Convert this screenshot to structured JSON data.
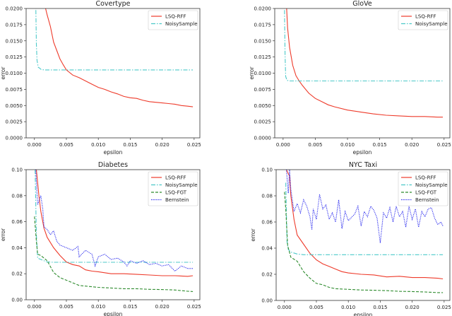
{
  "chart_data": [
    {
      "type": "line",
      "title": "Covertype",
      "xlabel": "epsilon",
      "ylabel": "error",
      "xlim": [
        -0.0013,
        0.0259
      ],
      "ylim": [
        0,
        0.02
      ],
      "xticks": [
        "0.000",
        "0.005",
        "0.010",
        "0.015",
        "0.020",
        "0.025"
      ],
      "yticks": [
        "0.0000",
        "0.0025",
        "0.0050",
        "0.0075",
        "0.0100",
        "0.0125",
        "0.0150",
        "0.0175",
        "0.0200"
      ],
      "legend": "top-right",
      "series": [
        {
          "name": "LSQ-RFF",
          "color": "#ee3b2b",
          "style": "solid",
          "x": [
            0.0015,
            0.002,
            0.0025,
            0.003,
            0.0035,
            0.004,
            0.0045,
            0.005,
            0.006,
            0.007,
            0.008,
            0.009,
            0.01,
            0.011,
            0.012,
            0.013,
            0.014,
            0.015,
            0.016,
            0.017,
            0.018,
            0.019,
            0.02,
            0.021,
            0.022,
            0.023,
            0.024,
            0.0248
          ],
          "y": [
            0.021,
            0.019,
            0.0172,
            0.0148,
            0.0135,
            0.0122,
            0.0113,
            0.0105,
            0.0097,
            0.0093,
            0.0088,
            0.0083,
            0.0078,
            0.0075,
            0.0071,
            0.0068,
            0.0064,
            0.0062,
            0.0061,
            0.0058,
            0.0056,
            0.0055,
            0.0054,
            0.0053,
            0.0052,
            0.005,
            0.0049,
            0.0048
          ]
        },
        {
          "name": "NoisySample",
          "color": "#4cc9c9",
          "style": "dashdot",
          "x": [
            0.0002,
            0.0003,
            0.0004,
            0.0006,
            0.0008,
            0.001,
            0.0015,
            0.003,
            0.0248
          ],
          "y": [
            0.021,
            0.0145,
            0.012,
            0.0109,
            0.0108,
            0.0106,
            0.0105,
            0.0105,
            0.0105
          ]
        }
      ]
    },
    {
      "type": "line",
      "title": "GloVe",
      "xlabel": "epsilon",
      "ylabel": "error",
      "xlim": [
        -0.0013,
        0.0259
      ],
      "ylim": [
        0,
        0.02
      ],
      "xticks": [
        "0.000",
        "0.005",
        "0.010",
        "0.015",
        "0.020",
        "0.025"
      ],
      "yticks": [
        "0.0000",
        "0.0025",
        "0.0050",
        "0.0075",
        "0.0100",
        "0.0125",
        "0.0150",
        "0.0175",
        "0.0200"
      ],
      "legend": "top-right",
      "series": [
        {
          "name": "LSQ-RFF",
          "color": "#ee3b2b",
          "style": "solid",
          "x": [
            0.0005,
            0.0007,
            0.001,
            0.0015,
            0.002,
            0.0025,
            0.003,
            0.004,
            0.005,
            0.006,
            0.007,
            0.008,
            0.01,
            0.012,
            0.014,
            0.016,
            0.018,
            0.02,
            0.022,
            0.024,
            0.0248
          ],
          "y": [
            0.021,
            0.017,
            0.014,
            0.0112,
            0.0096,
            0.0088,
            0.0081,
            0.0069,
            0.0061,
            0.0056,
            0.0051,
            0.0048,
            0.0043,
            0.004,
            0.0037,
            0.0035,
            0.0034,
            0.0033,
            0.0033,
            0.0032,
            0.0032
          ]
        },
        {
          "name": "NoisySample",
          "color": "#4cc9c9",
          "style": "dashdot",
          "x": [
            0.0002,
            0.0003,
            0.0004,
            0.0006,
            0.001,
            0.002,
            0.0248
          ],
          "y": [
            0.021,
            0.013,
            0.0095,
            0.0089,
            0.0088,
            0.0088,
            0.0088
          ]
        }
      ]
    },
    {
      "type": "line",
      "title": "Diabetes",
      "xlabel": "epsilon",
      "ylabel": "error",
      "xlim": [
        -0.0013,
        0.0259
      ],
      "ylim": [
        0,
        0.1
      ],
      "xticks": [
        "0.000",
        "0.005",
        "0.010",
        "0.015",
        "0.020",
        "0.025"
      ],
      "yticks": [
        "0.00",
        "0.02",
        "0.04",
        "0.06",
        "0.08",
        "0.10"
      ],
      "legend": "top-right",
      "series": [
        {
          "name": "LSQ-RFF",
          "color": "#ee3b2b",
          "style": "solid",
          "x": [
            0.0003,
            0.0007,
            0.001,
            0.0015,
            0.002,
            0.003,
            0.004,
            0.005,
            0.006,
            0.007,
            0.008,
            0.009,
            0.01,
            0.012,
            0.014,
            0.016,
            0.018,
            0.02,
            0.022,
            0.024,
            0.0248
          ],
          "y": [
            0.1,
            0.08,
            0.068,
            0.055,
            0.048,
            0.04,
            0.034,
            0.029,
            0.027,
            0.026,
            0.023,
            0.022,
            0.0215,
            0.02,
            0.02,
            0.0195,
            0.019,
            0.0185,
            0.0185,
            0.018,
            0.0185
          ]
        },
        {
          "name": "NoisySample",
          "color": "#4cc9c9",
          "style": "dashdot",
          "x": [
            0.0001,
            0.0003,
            0.0005,
            0.001,
            0.002,
            0.003,
            0.0248
          ],
          "y": [
            0.1,
            0.05,
            0.032,
            0.031,
            0.029,
            0.0288,
            0.0288
          ]
        },
        {
          "name": "LSQ-FGT",
          "color": "#2e8b2e",
          "style": "dashed",
          "x": [
            0.0,
            0.0003,
            0.0005,
            0.001,
            0.002,
            0.003,
            0.004,
            0.005,
            0.006,
            0.007,
            0.008,
            0.01,
            0.012,
            0.014,
            0.016,
            0.018,
            0.02,
            0.022,
            0.024,
            0.0248
          ],
          "y": [
            0.064,
            0.045,
            0.035,
            0.034,
            0.03,
            0.021,
            0.017,
            0.015,
            0.013,
            0.011,
            0.0105,
            0.0095,
            0.009,
            0.0085,
            0.0085,
            0.008,
            0.0078,
            0.0075,
            0.0065,
            0.0063
          ]
        },
        {
          "name": "Bernstein",
          "color": "#2b2bee",
          "style": "dotted",
          "x": [
            0.0002,
            0.0005,
            0.001,
            0.0013,
            0.0015,
            0.002,
            0.0025,
            0.003,
            0.0035,
            0.004,
            0.005,
            0.006,
            0.0068,
            0.007,
            0.008,
            0.009,
            0.0095,
            0.01,
            0.011,
            0.012,
            0.013,
            0.014,
            0.0145,
            0.015,
            0.016,
            0.017,
            0.018,
            0.019,
            0.02,
            0.021,
            0.022,
            0.023,
            0.024,
            0.0248
          ],
          "y": [
            0.1,
            0.073,
            0.08,
            0.07,
            0.056,
            0.054,
            0.05,
            0.053,
            0.045,
            0.042,
            0.04,
            0.038,
            0.041,
            0.033,
            0.038,
            0.035,
            0.026,
            0.033,
            0.035,
            0.031,
            0.032,
            0.029,
            0.026,
            0.03,
            0.028,
            0.03,
            0.027,
            0.028,
            0.026,
            0.027,
            0.022,
            0.026,
            0.024,
            0.024
          ]
        }
      ]
    },
    {
      "type": "line",
      "title": "NYC Taxi",
      "xlabel": "epsilon",
      "ylabel": "error",
      "xlim": [
        -0.0013,
        0.0259
      ],
      "ylim": [
        0,
        0.1
      ],
      "xticks": [
        "0.000",
        "0.005",
        "0.010",
        "0.015",
        "0.020",
        "0.025"
      ],
      "yticks": [
        "0.00",
        "0.02",
        "0.04",
        "0.06",
        "0.08",
        "0.10"
      ],
      "legend": "top-right",
      "series": [
        {
          "name": "LSQ-RFF",
          "color": "#ee3b2b",
          "style": "solid",
          "x": [
            0.0003,
            0.0008,
            0.001,
            0.0015,
            0.002,
            0.003,
            0.004,
            0.005,
            0.006,
            0.007,
            0.008,
            0.009,
            0.01,
            0.012,
            0.014,
            0.016,
            0.018,
            0.02,
            0.022,
            0.024,
            0.0248
          ],
          "y": [
            0.1,
            0.095,
            0.08,
            0.062,
            0.05,
            0.043,
            0.036,
            0.031,
            0.028,
            0.026,
            0.024,
            0.022,
            0.021,
            0.02,
            0.0195,
            0.018,
            0.0185,
            0.0175,
            0.0175,
            0.017,
            0.0165
          ]
        },
        {
          "name": "NoisySample",
          "color": "#4cc9c9",
          "style": "dashdot",
          "x": [
            0.0002,
            0.0004,
            0.0006,
            0.001,
            0.002,
            0.003,
            0.0248
          ],
          "y": [
            0.09,
            0.045,
            0.039,
            0.037,
            0.0355,
            0.035,
            0.035
          ]
        },
        {
          "name": "LSQ-FGT",
          "color": "#2e8b2e",
          "style": "dashed",
          "x": [
            0.0,
            0.0002,
            0.0005,
            0.001,
            0.002,
            0.003,
            0.004,
            0.005,
            0.006,
            0.007,
            0.008,
            0.01,
            0.012,
            0.014,
            0.016,
            0.018,
            0.02,
            0.022,
            0.024,
            0.0248
          ],
          "y": [
            0.083,
            0.07,
            0.042,
            0.033,
            0.03,
            0.022,
            0.017,
            0.013,
            0.012,
            0.01,
            0.009,
            0.0085,
            0.008,
            0.0078,
            0.0075,
            0.007,
            0.0068,
            0.0065,
            0.006,
            0.006
          ]
        },
        {
          "name": "Bernstein",
          "color": "#2b2bee",
          "style": "dotted",
          "x": [
            0.0003,
            0.0006,
            0.0008,
            0.001,
            0.0015,
            0.002,
            0.0025,
            0.003,
            0.0035,
            0.004,
            0.0043,
            0.0045,
            0.005,
            0.0055,
            0.006,
            0.0065,
            0.007,
            0.0075,
            0.008,
            0.0085,
            0.009,
            0.0095,
            0.01,
            0.011,
            0.0115,
            0.012,
            0.0125,
            0.013,
            0.0135,
            0.014,
            0.0145,
            0.015,
            0.0155,
            0.016,
            0.0165,
            0.017,
            0.0175,
            0.018,
            0.0185,
            0.019,
            0.0195,
            0.02,
            0.0205,
            0.021,
            0.0215,
            0.022,
            0.0225,
            0.023,
            0.0235,
            0.024,
            0.0245,
            0.0248
          ],
          "y": [
            0.1,
            0.082,
            0.1,
            0.085,
            0.068,
            0.074,
            0.067,
            0.077,
            0.072,
            0.064,
            0.054,
            0.07,
            0.062,
            0.081,
            0.07,
            0.073,
            0.062,
            0.067,
            0.06,
            0.077,
            0.055,
            0.068,
            0.061,
            0.066,
            0.072,
            0.057,
            0.068,
            0.064,
            0.072,
            0.069,
            0.063,
            0.044,
            0.067,
            0.063,
            0.071,
            0.06,
            0.072,
            0.064,
            0.068,
            0.056,
            0.072,
            0.062,
            0.07,
            0.056,
            0.068,
            0.064,
            0.07,
            0.071,
            0.063,
            0.058,
            0.06,
            0.057
          ]
        }
      ]
    }
  ]
}
